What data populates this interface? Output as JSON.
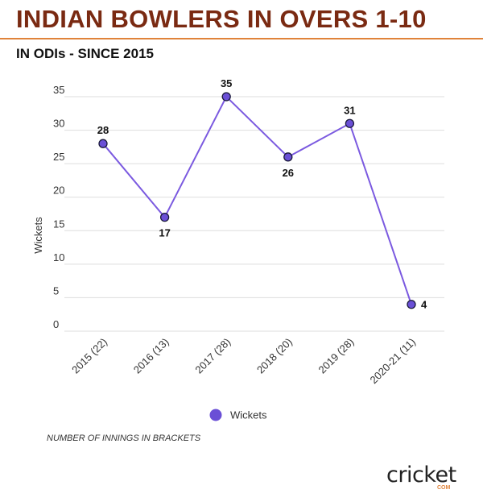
{
  "header": {
    "title": "INDIAN BOWLERS IN OVERS 1-10",
    "subtitle": "IN ODIs - SINCE 2015"
  },
  "chart_data": {
    "type": "line",
    "categories": [
      "2015 (22)",
      "2016 (13)",
      "2017 (28)",
      "2018 (20)",
      "2019 (28)",
      "2020-21 (11)"
    ],
    "series": [
      {
        "name": "Wickets",
        "values": [
          28,
          17,
          35,
          26,
          31,
          4
        ]
      }
    ],
    "data_labels": [
      "28",
      "17",
      "35",
      "26",
      "31",
      "4"
    ],
    "ylabel": "Wickets",
    "xlabel": "",
    "yticks": [
      0,
      5,
      10,
      15,
      20,
      25,
      30,
      35
    ],
    "ylim": [
      0,
      35
    ],
    "grid": true,
    "legend": "bottom-center",
    "colors": {
      "line": "#7b5ae0",
      "marker": "#6a4fd6",
      "marker_stroke": "#1a1a3a",
      "grid": "#dddddd"
    }
  },
  "footer": {
    "note": "NUMBER OF INNINGS IN BRACKETS",
    "logo_text": "cricket",
    "logo_suffix": "COM"
  }
}
